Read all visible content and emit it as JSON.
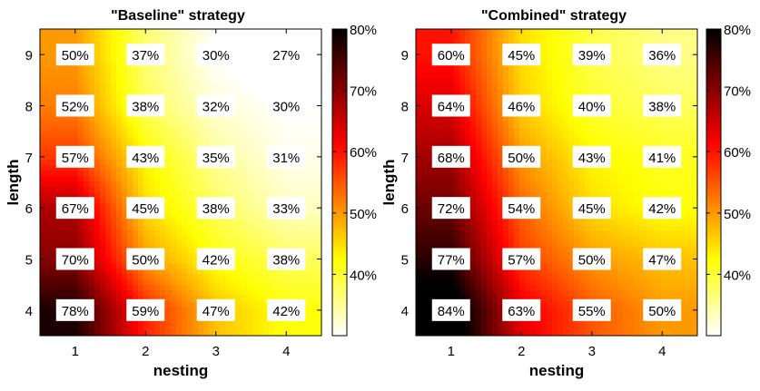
{
  "chart_data": [
    {
      "type": "heatmap",
      "title": "\"Baseline\" strategy",
      "xlabel": "nesting",
      "ylabel": "length",
      "x": [
        1,
        2,
        3,
        4
      ],
      "y": [
        4,
        5,
        6,
        7,
        8,
        9
      ],
      "values": [
        [
          78,
          59,
          47,
          42
        ],
        [
          70,
          50,
          42,
          38
        ],
        [
          67,
          45,
          38,
          33
        ],
        [
          57,
          43,
          35,
          31
        ],
        [
          52,
          38,
          32,
          30
        ],
        [
          50,
          37,
          30,
          27
        ]
      ],
      "cell_labels": [
        [
          "78%",
          "59%",
          "47%",
          "42%"
        ],
        [
          "70%",
          "50%",
          "42%",
          "38%"
        ],
        [
          "67%",
          "45%",
          "38%",
          "33%"
        ],
        [
          "57%",
          "43%",
          "35%",
          "31%"
        ],
        [
          "52%",
          "38%",
          "32%",
          "30%"
        ],
        [
          "50%",
          "37%",
          "30%",
          "27%"
        ]
      ],
      "colorbar": {
        "range": [
          30,
          80
        ],
        "ticks": [
          "40%",
          "50%",
          "60%",
          "70%",
          "80%"
        ],
        "tick_values": [
          40,
          50,
          60,
          70,
          80
        ]
      },
      "colormap": "hot (reversed)"
    },
    {
      "type": "heatmap",
      "title": "\"Combined\" strategy",
      "xlabel": "nesting",
      "ylabel": "length",
      "x": [
        1,
        2,
        3,
        4
      ],
      "y": [
        4,
        5,
        6,
        7,
        8,
        9
      ],
      "values": [
        [
          84,
          63,
          55,
          50
        ],
        [
          77,
          57,
          50,
          47
        ],
        [
          72,
          54,
          45,
          42
        ],
        [
          68,
          50,
          43,
          41
        ],
        [
          64,
          46,
          40,
          38
        ],
        [
          60,
          45,
          39,
          36
        ]
      ],
      "cell_labels": [
        [
          "84%",
          "63%",
          "55%",
          "50%"
        ],
        [
          "77%",
          "57%",
          "50%",
          "47%"
        ],
        [
          "72%",
          "54%",
          "45%",
          "42%"
        ],
        [
          "68%",
          "50%",
          "43%",
          "41%"
        ],
        [
          "64%",
          "46%",
          "40%",
          "38%"
        ],
        [
          "60%",
          "45%",
          "39%",
          "36%"
        ]
      ],
      "colorbar": {
        "range": [
          30,
          80
        ],
        "ticks": [
          "40%",
          "50%",
          "60%",
          "70%",
          "80%"
        ],
        "tick_values": [
          40,
          50,
          60,
          70,
          80
        ]
      },
      "colormap": "hot (reversed)"
    }
  ]
}
